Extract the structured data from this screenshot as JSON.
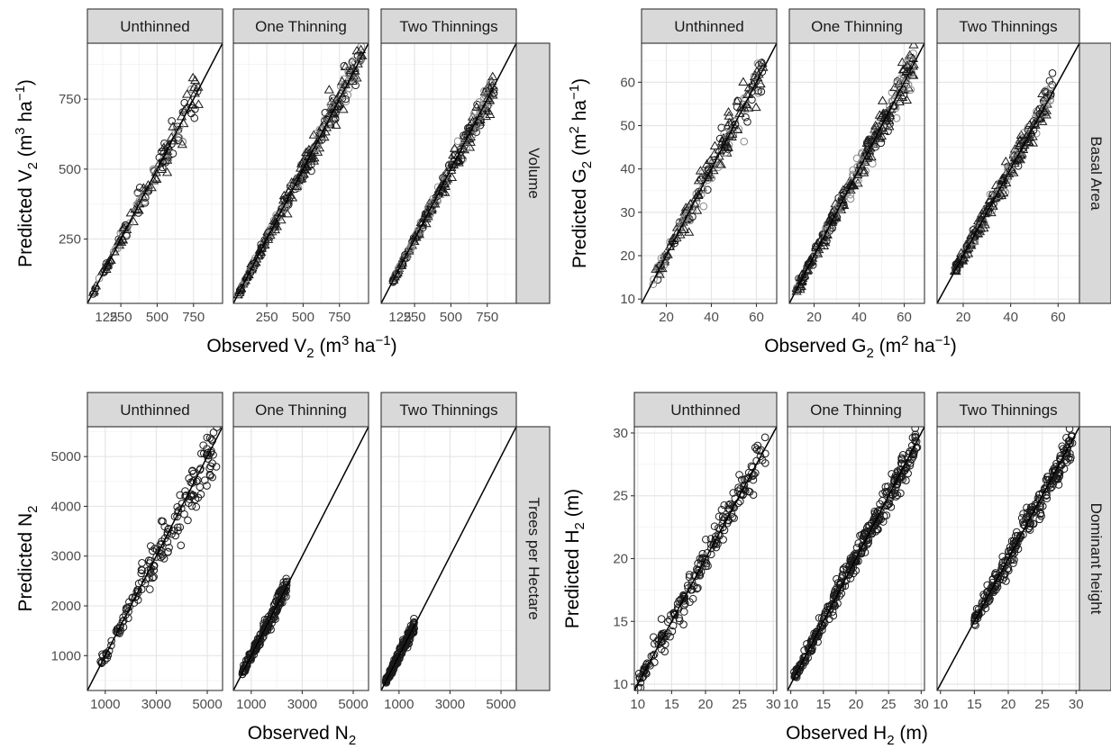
{
  "chart_data": [
    {
      "type": "scatter",
      "facet_variable": "Volume",
      "panels": [
        "Unthinned",
        "One Thinning",
        "Two Thinnings"
      ],
      "xlabel": "Observed V2 (m3 ha−1)",
      "xlabel_parts": {
        "pre": "Observed V",
        "sub": "2",
        "mid": " (m",
        "sup": "3",
        "mid2": " ha",
        "sup2": "−1",
        "post": ")"
      },
      "ylabel_parts": {
        "pre": "Predicted V",
        "sub": "2",
        "mid": " (m",
        "sup": "3",
        "mid2": " ha",
        "sup2": "−1",
        "post": ")"
      },
      "xlim": [
        20,
        950
      ],
      "ylim": [
        20,
        950
      ],
      "x_ticks": [
        250,
        500,
        750
      ],
      "x_tick_labels_per_panel": [
        [
          "250",
          "500",
          "750"
        ],
        [
          "250",
          "500",
          "750"
        ],
        [
          "250",
          "500",
          "750"
        ]
      ],
      "x_extra_ticks": [
        [
          [
            125,
            "125"
          ]
        ],
        [],
        [
          [
            125,
            "125"
          ]
        ]
      ],
      "y_ticks": [
        250,
        500,
        750
      ],
      "y_tick_labels": [
        "250",
        "500",
        "750"
      ],
      "reference_line": "y = x",
      "markers": [
        "circle",
        "triangle"
      ],
      "series": [
        {
          "panel": "Unthinned",
          "x_range": [
            55,
            790
          ],
          "n": 140,
          "spread": 0.055
        },
        {
          "panel": "One Thinning",
          "x_range": [
            50,
            910
          ],
          "n": 320,
          "spread": 0.04
        },
        {
          "panel": "Two Thinnings",
          "x_range": [
            100,
            800
          ],
          "n": 280,
          "spread": 0.035
        }
      ],
      "grid": true
    },
    {
      "type": "scatter",
      "facet_variable": "Basal Area",
      "panels": [
        "Unthinned",
        "One Thinning",
        "Two Thinnings"
      ],
      "xlabel": "Observed G2 (m2 ha−1)",
      "xlabel_parts": {
        "pre": "Observed G",
        "sub": "2",
        "mid": " (m",
        "sup": "2",
        "mid2": " ha",
        "sup2": "−1",
        "post": ")"
      },
      "ylabel_parts": {
        "pre": "Predicted G",
        "sub": "2",
        "mid": " (m",
        "sup": "2",
        "mid2": " ha",
        "sup2": "−1",
        "post": ")"
      },
      "xlim": [
        9,
        69
      ],
      "ylim": [
        9,
        69
      ],
      "x_ticks": [
        20,
        40,
        60
      ],
      "x_tick_labels_per_panel": [
        [
          "20",
          "40",
          "60"
        ],
        [
          "20",
          "40",
          "60"
        ],
        [
          "20",
          "40",
          "60"
        ]
      ],
      "x_extra_ticks": [
        [],
        [],
        []
      ],
      "y_ticks": [
        10,
        20,
        30,
        40,
        50,
        60
      ],
      "y_tick_labels": [
        "10",
        "20",
        "30",
        "40",
        "50",
        "60"
      ],
      "reference_line": "y = x",
      "markers": [
        "circle",
        "triangle"
      ],
      "series": [
        {
          "panel": "Unthinned",
          "x_range": [
            14,
            63
          ],
          "n": 200,
          "spread": 0.05
        },
        {
          "panel": "One Thinning",
          "x_range": [
            12,
            65
          ],
          "n": 340,
          "spread": 0.035
        },
        {
          "panel": "Two Thinnings",
          "x_range": [
            16,
            58
          ],
          "n": 280,
          "spread": 0.035
        }
      ],
      "grid": true
    },
    {
      "type": "scatter",
      "facet_variable": "Trees per Hectare",
      "panels": [
        "Unthinned",
        "One Thinning",
        "Two Thinnings"
      ],
      "xlabel": "Observed N2",
      "xlabel_parts": {
        "pre": "Observed N",
        "sub": "2",
        "mid": "",
        "sup": "",
        "mid2": "",
        "sup2": "",
        "post": ""
      },
      "ylabel_parts": {
        "pre": "Predicted N",
        "sub": "2",
        "mid": "",
        "sup": "",
        "mid2": "",
        "sup2": "",
        "post": ""
      },
      "xlim": [
        300,
        5600
      ],
      "ylim": [
        300,
        5600
      ],
      "x_ticks": [
        1000,
        3000,
        5000
      ],
      "x_tick_labels_per_panel": [
        [
          "1000",
          "3000",
          "5000"
        ],
        [
          "1000",
          "3000",
          "5000"
        ],
        [
          "1000",
          "3000",
          "5000"
        ]
      ],
      "x_extra_ticks": [
        [],
        [],
        []
      ],
      "y_ticks": [
        1000,
        2000,
        3000,
        4000,
        5000
      ],
      "y_tick_labels": [
        "1000",
        "2000",
        "3000",
        "4000",
        "5000"
      ],
      "reference_line": "y = x",
      "markers": [
        "circle"
      ],
      "series": [
        {
          "panel": "Unthinned",
          "x_range": [
            800,
            5400
          ],
          "n": 170,
          "spread": 0.07
        },
        {
          "panel": "One Thinning",
          "x_range": [
            650,
            2400
          ],
          "n": 200,
          "spread": 0.05
        },
        {
          "panel": "Two Thinnings",
          "x_range": [
            480,
            1600
          ],
          "n": 160,
          "spread": 0.05
        }
      ],
      "grid": true
    },
    {
      "type": "scatter",
      "facet_variable": "Dominant height",
      "panels": [
        "Unthinned",
        "One Thinning",
        "Two Thinnings"
      ],
      "xlabel": "Observed H2 (m)",
      "xlabel_parts": {
        "pre": "Observed H",
        "sub": "2",
        "mid": " (m)",
        "sup": "",
        "mid2": "",
        "sup2": "",
        "post": ""
      },
      "ylabel_parts": {
        "pre": "Predicted H",
        "sub": "2",
        "mid": " (m)",
        "sup": "",
        "mid2": "",
        "sup2": "",
        "post": ""
      },
      "xlim": [
        9.5,
        30.5
      ],
      "ylim": [
        9.5,
        30.5
      ],
      "x_ticks": [
        10,
        15,
        20,
        25,
        30
      ],
      "x_tick_labels_per_panel": [
        [
          "10",
          "15",
          "20",
          "25",
          "30"
        ],
        [
          "10",
          "15",
          "20",
          "25",
          "30"
        ],
        [
          "10",
          "15",
          "20",
          "25",
          "30"
        ]
      ],
      "x_extra_ticks": [
        [],
        [],
        []
      ],
      "y_ticks": [
        10,
        15,
        20,
        25,
        30
      ],
      "y_tick_labels": [
        "10",
        "15",
        "20",
        "25",
        "30"
      ],
      "reference_line": "y = x",
      "markers": [
        "circle"
      ],
      "series": [
        {
          "panel": "Unthinned",
          "x_range": [
            10,
            29
          ],
          "n": 200,
          "spread": 0.035
        },
        {
          "panel": "One Thinning",
          "x_range": [
            10.5,
            29.5
          ],
          "n": 340,
          "spread": 0.025
        },
        {
          "panel": "Two Thinnings",
          "x_range": [
            15,
            29.5
          ],
          "n": 260,
          "spread": 0.025
        }
      ],
      "grid": true
    }
  ],
  "colors": {
    "strip_fill": "#d9d9d9",
    "border": "#333333",
    "grid_major": "#e6e6e6",
    "grid_minor": "#f2f2f2",
    "points": "#1a1a1a",
    "points_light": "#8a8a8a",
    "reference_line": "#000000"
  }
}
